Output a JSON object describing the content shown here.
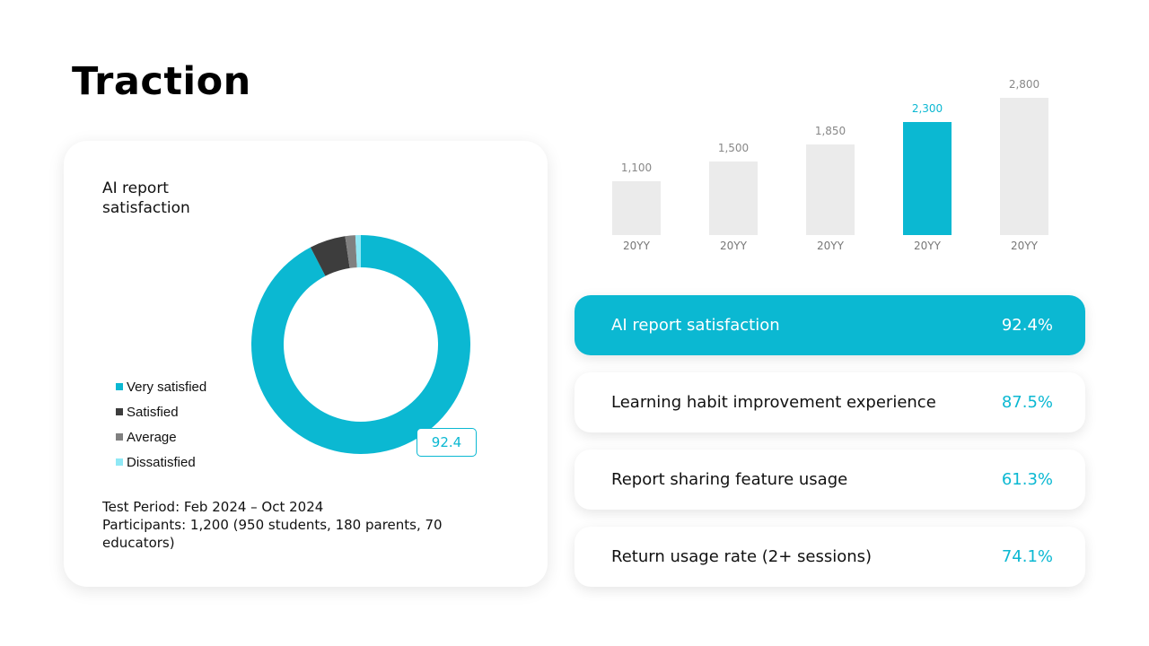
{
  "page": {
    "title": "Traction"
  },
  "colors": {
    "accent": "#0bb8d2",
    "dark": "#3d3d3d",
    "gray": "#808080",
    "light_cyan": "#8fe8f5",
    "bar_gray": "#ebebeb"
  },
  "satisfaction_card": {
    "title": "AI report satisfaction",
    "value_tag": "92.4",
    "legend": [
      {
        "label": "Very satisfied",
        "color": "#0bb8d2"
      },
      {
        "label": "Satisfied",
        "color": "#3d3d3d"
      },
      {
        "label": "Average",
        "color": "#808080"
      },
      {
        "label": "Dissatisfied",
        "color": "#8fe8f5"
      }
    ],
    "test_period": "Test Period: Feb 2024 – Oct 2024",
    "participants": "Participants:  1,200 (950 students, 180 parents, 70 educators)"
  },
  "bar_chart": {
    "bars": [
      {
        "label": "1,100",
        "category": "20YY",
        "highlight": false
      },
      {
        "label": "1,500",
        "category": "20YY",
        "highlight": false
      },
      {
        "label": "1,850",
        "category": "20YY",
        "highlight": false
      },
      {
        "label": "2,300",
        "category": "20YY",
        "highlight": true
      },
      {
        "label": "2,800",
        "category": "20YY",
        "highlight": false
      }
    ]
  },
  "metrics": [
    {
      "label": "AI report satisfaction",
      "value": "92.4%",
      "active": true
    },
    {
      "label": "Learning habit improvement experience",
      "value": "87.5%",
      "active": false
    },
    {
      "label": "Report sharing feature usage",
      "value": "61.3%",
      "active": false
    },
    {
      "label": "Return usage rate (2+ sessions)",
      "value": "74.1%",
      "active": false
    }
  ],
  "chart_data": [
    {
      "type": "pie",
      "title": "AI report satisfaction",
      "categories": [
        "Very satisfied",
        "Satisfied",
        "Average",
        "Dissatisfied"
      ],
      "values": [
        92.4,
        5.3,
        1.5,
        0.8
      ],
      "colors": [
        "#0bb8d2",
        "#3d3d3d",
        "#808080",
        "#8fe8f5"
      ],
      "donut": true,
      "annotation": "92.4",
      "legend_position": "left"
    },
    {
      "type": "bar",
      "title": "",
      "categories": [
        "20YY",
        "20YY",
        "20YY",
        "20YY",
        "20YY"
      ],
      "values": [
        1100,
        1500,
        1850,
        2300,
        2800
      ],
      "data_labels": [
        "1,100",
        "1,500",
        "1,850",
        "2,300",
        "2,800"
      ],
      "highlight_index": 3,
      "xlabel": "",
      "ylabel": "",
      "ylim": [
        0,
        2800
      ],
      "grid": false
    }
  ]
}
